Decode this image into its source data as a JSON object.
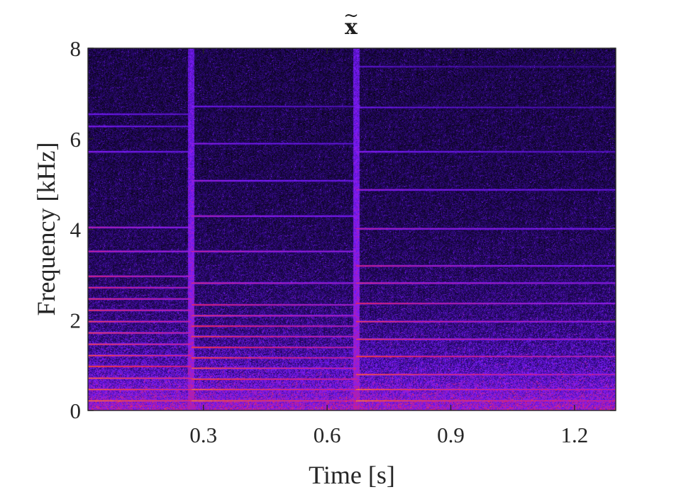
{
  "chart_data": {
    "type": "heatmap",
    "title": "x",
    "title_accent": "~",
    "xlabel": "Time [s]",
    "ylabel": "Frequency [kHz]",
    "xlim": [
      0.02,
      1.3
    ],
    "ylim": [
      0,
      8
    ],
    "x_ticks": [
      0.3,
      0.6,
      0.9,
      1.2
    ],
    "x_tick_labels": [
      "0.3",
      "0.6",
      "0.9",
      "1.2"
    ],
    "y_ticks": [
      0,
      2,
      4,
      6,
      8
    ],
    "y_tick_labels": [
      "0",
      "2",
      "4",
      "6",
      "8"
    ],
    "colormap": "fire",
    "colors": [
      "#06040e",
      "#2a0874",
      "#7a1cff",
      "#e0206a",
      "#ff5a1a",
      "#ffd030"
    ],
    "onsets_s": [
      0.27,
      0.67
    ],
    "segments": [
      {
        "t_start": 0.02,
        "t_end": 0.27,
        "partials_khz": [
          0.22,
          0.47,
          0.72,
          0.98,
          1.22,
          1.47,
          1.72,
          1.97,
          2.22,
          2.47,
          2.72,
          2.97,
          3.52,
          4.05,
          5.72,
          6.28,
          6.55
        ]
      },
      {
        "t_start": 0.27,
        "t_end": 0.67,
        "partials_khz": [
          0.22,
          0.47,
          0.7,
          0.94,
          1.17,
          1.4,
          1.64,
          1.87,
          2.1,
          2.34,
          2.82,
          3.52,
          4.3,
          5.08,
          5.9,
          6.72
        ]
      },
      {
        "t_start": 0.67,
        "t_end": 1.3,
        "partials_khz": [
          0.22,
          0.47,
          0.8,
          1.2,
          1.58,
          1.97,
          2.37,
          2.82,
          3.2,
          4.02,
          4.88,
          5.72,
          6.7,
          7.6
        ]
      }
    ]
  }
}
